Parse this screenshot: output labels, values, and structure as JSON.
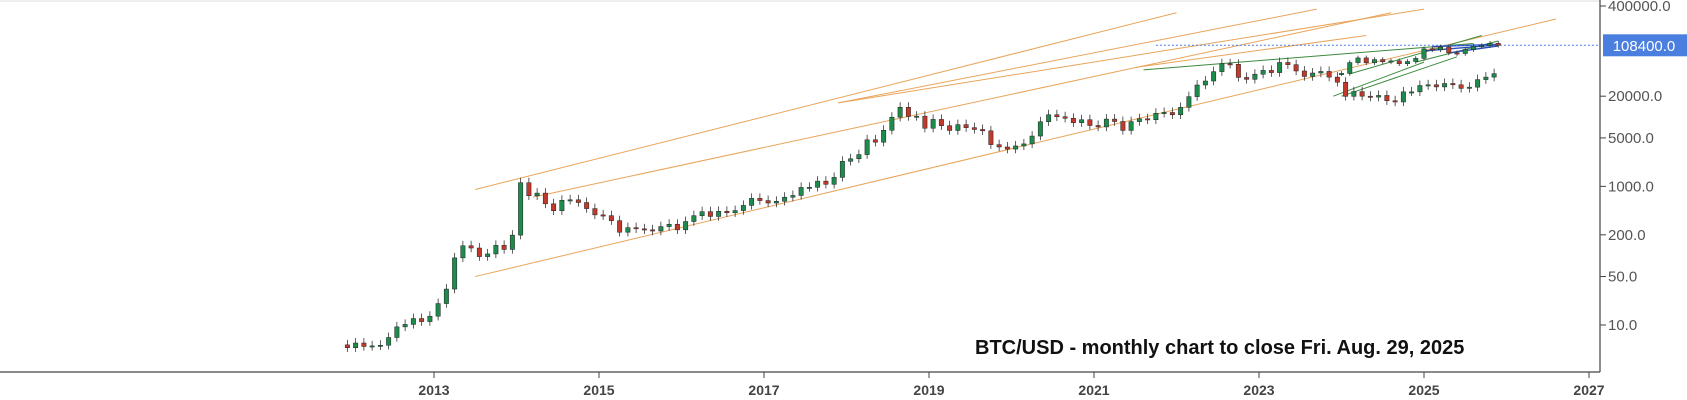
{
  "chart_data": {
    "type": "candlestick",
    "title": "BTC/USD - monthly chart to close Fri. Aug. 29, 2025",
    "y_scale": "log",
    "ylim": [
      2.5,
      450000
    ],
    "xlim": [
      2011.3,
      2027.2
    ],
    "y_ticks": [
      "400000.0",
      "20000.0",
      "5000.0",
      "1000.0",
      "200.0",
      "50.0",
      "10.0"
    ],
    "y_tick_values": [
      400000,
      20000,
      5000,
      1000,
      200,
      50,
      10
    ],
    "x_ticks": [
      "2013",
      "2015",
      "2017",
      "2019",
      "2021",
      "2023",
      "2025",
      "2027"
    ],
    "x_tick_values": [
      2013,
      2015,
      2017,
      2019,
      2021,
      2023,
      2025,
      2027
    ],
    "current_price": 108400,
    "current_price_label": "108400.0",
    "colors": {
      "up": "#1e8a4c",
      "down": "#c0392b",
      "channel": "#e8a45a",
      "trend_green": "#3d8a3d",
      "trend_blue": "#2b4fb8",
      "price_badge": "#4a7fe0",
      "axis": "#444444"
    },
    "closes": [
      [
        2011.95,
        4.7
      ],
      [
        2012.05,
        5.5
      ],
      [
        2012.15,
        4.9
      ],
      [
        2012.25,
        5.0
      ],
      [
        2012.35,
        5.1
      ],
      [
        2012.45,
        6.6
      ],
      [
        2012.55,
        9.4
      ],
      [
        2012.65,
        10.2
      ],
      [
        2012.75,
        12.4
      ],
      [
        2012.85,
        11.2
      ],
      [
        2012.95,
        13.4
      ],
      [
        2013.05,
        20.4
      ],
      [
        2013.15,
        33.0
      ],
      [
        2013.25,
        93.0
      ],
      [
        2013.35,
        139.0
      ],
      [
        2013.45,
        129.0
      ],
      [
        2013.55,
        97.0
      ],
      [
        2013.65,
        106.0
      ],
      [
        2013.75,
        141.0
      ],
      [
        2013.85,
        123.0
      ],
      [
        2013.95,
        198.0
      ],
      [
        2014.05,
        1130.0
      ],
      [
        2014.15,
        732.0
      ],
      [
        2014.25,
        800.0
      ],
      [
        2014.35,
        560.0
      ],
      [
        2014.45,
        445.0
      ],
      [
        2014.55,
        630.0
      ],
      [
        2014.65,
        640.0
      ],
      [
        2014.75,
        585.0
      ],
      [
        2014.85,
        478.0
      ],
      [
        2014.95,
        388.0
      ],
      [
        2015.05,
        378.0
      ],
      [
        2015.15,
        320.0
      ],
      [
        2015.25,
        218.0
      ],
      [
        2015.35,
        254.0
      ],
      [
        2015.45,
        244.0
      ],
      [
        2015.55,
        236.0
      ],
      [
        2015.65,
        227.0
      ],
      [
        2015.75,
        263.0
      ],
      [
        2015.85,
        284.0
      ],
      [
        2015.95,
        236.0
      ],
      [
        2016.05,
        311.0
      ],
      [
        2016.15,
        378.0
      ],
      [
        2016.25,
        432.0
      ],
      [
        2016.35,
        368.0
      ],
      [
        2016.45,
        437.0
      ],
      [
        2016.55,
        416.0
      ],
      [
        2016.65,
        448.0
      ],
      [
        2016.75,
        531.0
      ],
      [
        2016.85,
        672.0
      ],
      [
        2016.95,
        624.0
      ],
      [
        2017.05,
        575.0
      ],
      [
        2017.15,
        609.0
      ],
      [
        2017.25,
        698.0
      ],
      [
        2017.35,
        739.0
      ],
      [
        2017.45,
        965.0
      ],
      [
        2017.55,
        970.0
      ],
      [
        2017.65,
        1190.0
      ],
      [
        2017.75,
        1071.0
      ],
      [
        2017.85,
        1348.0
      ],
      [
        2017.95,
        2300.0
      ],
      [
        2018.05,
        2500.0
      ],
      [
        2018.15,
        2875.0
      ],
      [
        2018.25,
        4700.0
      ],
      [
        2018.35,
        4340.0
      ],
      [
        2018.45,
        6450.0
      ],
      [
        2018.55,
        9950.0
      ],
      [
        2018.65,
        13850.0
      ],
      [
        2018.75,
        10200.0
      ],
      [
        2018.85,
        10300.0
      ],
      [
        2018.95,
        6900.0
      ],
      [
        2019.05,
        9250.0
      ],
      [
        2019.15,
        7500.0
      ],
      [
        2019.25,
        6400.0
      ],
      [
        2019.35,
        7780.0
      ],
      [
        2019.45,
        7030.0
      ],
      [
        2019.55,
        6620.0
      ],
      [
        2019.65,
        6330.0
      ],
      [
        2019.75,
        4000.0
      ],
      [
        2019.85,
        3700.0
      ],
      [
        2019.95,
        3450.0
      ],
      [
        2020.05,
        3830.0
      ],
      [
        2020.15,
        4100.0
      ],
      [
        2020.25,
        5320.0
      ],
      [
        2020.35,
        8550.0
      ],
      [
        2020.45,
        10800.0
      ],
      [
        2020.55,
        10100.0
      ],
      [
        2020.65,
        9600.0
      ],
      [
        2020.75,
        8300.0
      ],
      [
        2020.85,
        9150.0
      ],
      [
        2020.95,
        7550.0
      ],
      [
        2021.05,
        7200.0
      ],
      [
        2021.15,
        9350.0
      ],
      [
        2021.25,
        8620.0
      ],
      [
        2021.35,
        6410.0
      ],
      [
        2021.45,
        8600.0
      ],
      [
        2021.55,
        9450.0
      ],
      [
        2021.65,
        9140.0
      ],
      [
        2021.75,
        11350.0
      ],
      [
        2021.85,
        11650.0
      ],
      [
        2021.95,
        10780.0
      ],
      [
        2022.05,
        13800.0
      ],
      [
        2022.15,
        19700.0
      ],
      [
        2022.25,
        29000.0
      ],
      [
        2022.35,
        33100.0
      ],
      [
        2022.45,
        45200.0
      ],
      [
        2022.55,
        58800.0
      ],
      [
        2022.65,
        57700.0
      ],
      [
        2022.75,
        37300.0
      ],
      [
        2022.85,
        35000.0
      ],
      [
        2022.95,
        41500.0
      ],
      [
        2023.05,
        47100.0
      ],
      [
        2023.15,
        43800.0
      ],
      [
        2023.25,
        61300.0
      ],
      [
        2023.35,
        57000.0
      ],
      [
        2023.45,
        46200.0
      ],
      [
        2023.55,
        38500.0
      ],
      [
        2023.65,
        43200.0
      ],
      [
        2023.75,
        45500.0
      ],
      [
        2023.85,
        37700.0
      ],
      [
        2023.95,
        31800.0
      ],
      [
        2024.05,
        19900.0
      ],
      [
        2024.15,
        23300.0
      ],
      [
        2024.25,
        20000.0
      ],
      [
        2024.35,
        19400.0
      ],
      [
        2024.45,
        20500.0
      ],
      [
        2024.55,
        17200.0
      ],
      [
        2024.65,
        16500.0
      ],
      [
        2024.75,
        23100.0
      ],
      [
        2024.85,
        23100.0
      ],
      [
        2024.95,
        28500.0
      ],
      [
        2025.05,
        29200.0
      ],
      [
        2025.15,
        27200.0
      ],
      [
        2025.25,
        30500.0
      ],
      [
        2025.35,
        29200.0
      ],
      [
        2025.45,
        25900.0
      ],
      [
        2025.55,
        27000.0
      ],
      [
        2025.65,
        34700.0
      ],
      [
        2025.75,
        37700.0
      ],
      [
        2025.85,
        42300.0
      ]
    ],
    "last_segment": [
      [
        2024.0,
        42300,
        42600
      ],
      [
        2024.1,
        42600,
        61100
      ],
      [
        2024.2,
        61100,
        71300
      ],
      [
        2024.3,
        71300,
        60600
      ],
      [
        2024.4,
        60600,
        67500
      ],
      [
        2024.5,
        67500,
        62700
      ],
      [
        2024.6,
        62700,
        64600
      ],
      [
        2024.7,
        64600,
        58900
      ],
      [
        2024.8,
        58900,
        63300
      ],
      [
        2024.9,
        63300,
        70200
      ],
      [
        2025.0,
        70200,
        96400
      ],
      [
        2025.1,
        96400,
        93400
      ],
      [
        2025.2,
        93400,
        102400
      ],
      [
        2025.3,
        102400,
        84300
      ],
      [
        2025.4,
        84300,
        82500
      ],
      [
        2025.5,
        82500,
        94200
      ],
      [
        2025.6,
        94200,
        104600
      ],
      [
        2025.7,
        104600,
        107100
      ],
      [
        2025.8,
        107100,
        115700
      ],
      [
        2025.9,
        115700,
        108400
      ]
    ]
  }
}
